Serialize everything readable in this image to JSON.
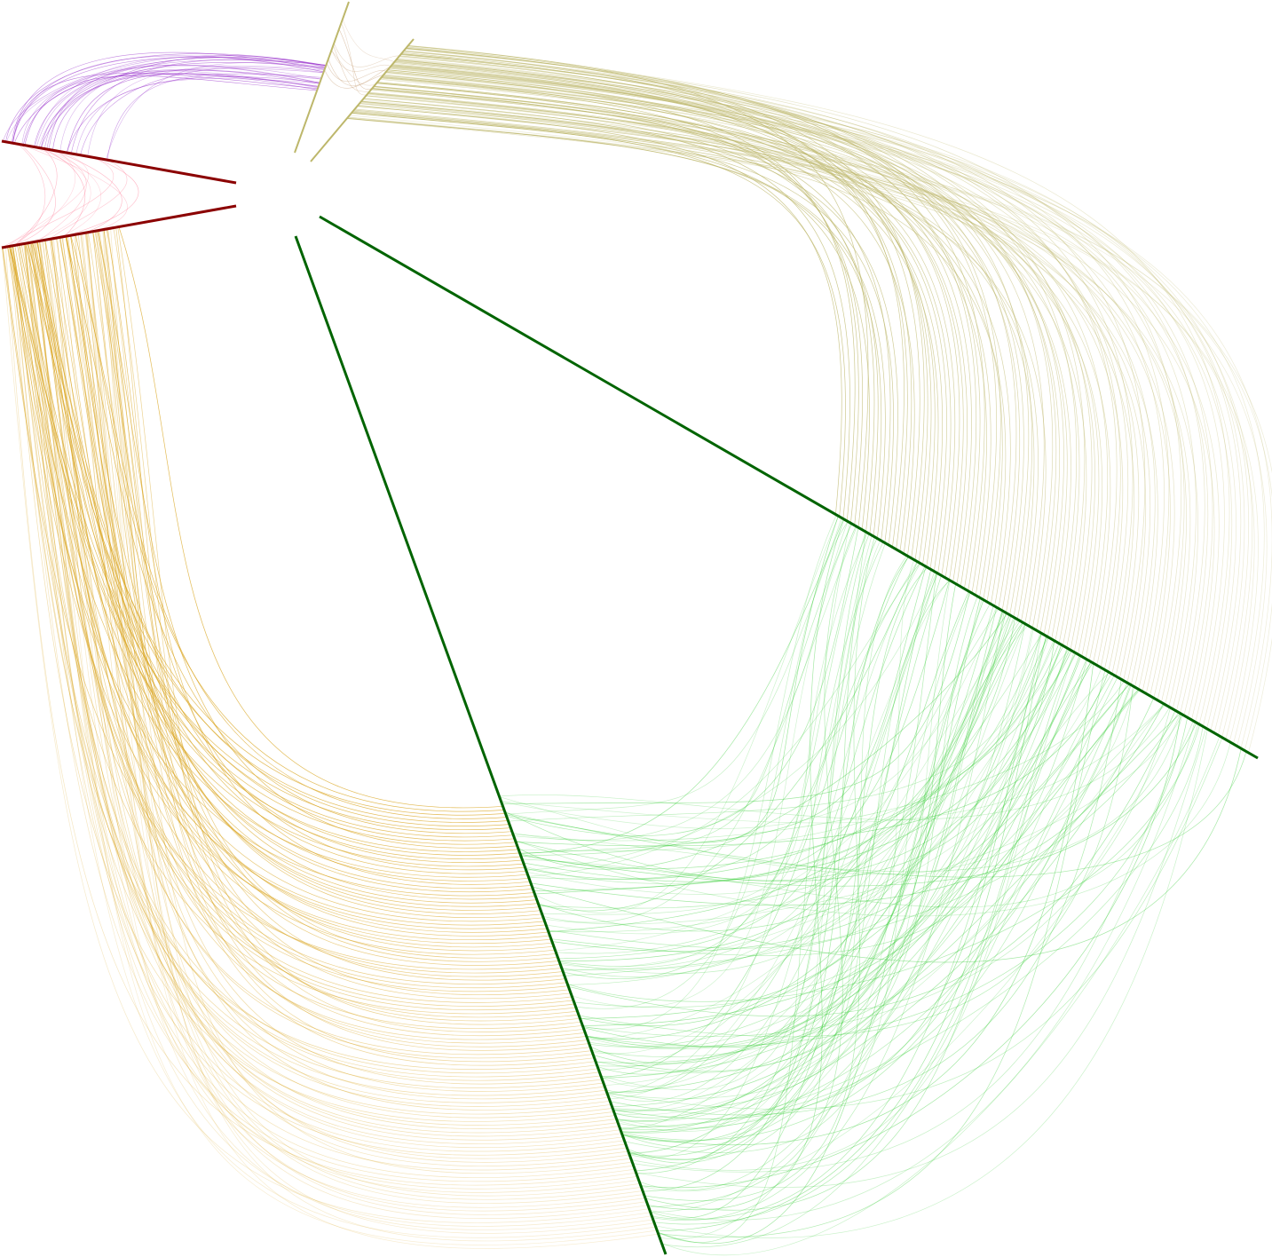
{
  "diagram": {
    "type": "hive-plot",
    "background": "#ffffff",
    "axes": [
      {
        "id": "green-axis-lower",
        "color": "#006400"
      },
      {
        "id": "green-axis-right",
        "color": "#006400"
      },
      {
        "id": "olive-axis-a",
        "color": "#bdb76b"
      },
      {
        "id": "olive-axis-b",
        "color": "#bdb76b"
      },
      {
        "id": "darkred-axis-upper",
        "color": "#8b0000"
      },
      {
        "id": "darkred-axis-lower",
        "color": "#8b0000"
      }
    ],
    "link_groups": [
      {
        "id": "gold-links",
        "color": "#daa520",
        "count": 120
      },
      {
        "id": "olive-links",
        "color": "#bdb76b",
        "count": 110
      },
      {
        "id": "green-links",
        "color": "#32cd32",
        "count": 160
      },
      {
        "id": "purple-links",
        "color": "#9932cc",
        "count": 30
      },
      {
        "id": "pink-links",
        "color": "#ff6b8a",
        "count": 14
      },
      {
        "id": "tan-links",
        "color": "#c8a27a",
        "count": 10
      }
    ]
  }
}
